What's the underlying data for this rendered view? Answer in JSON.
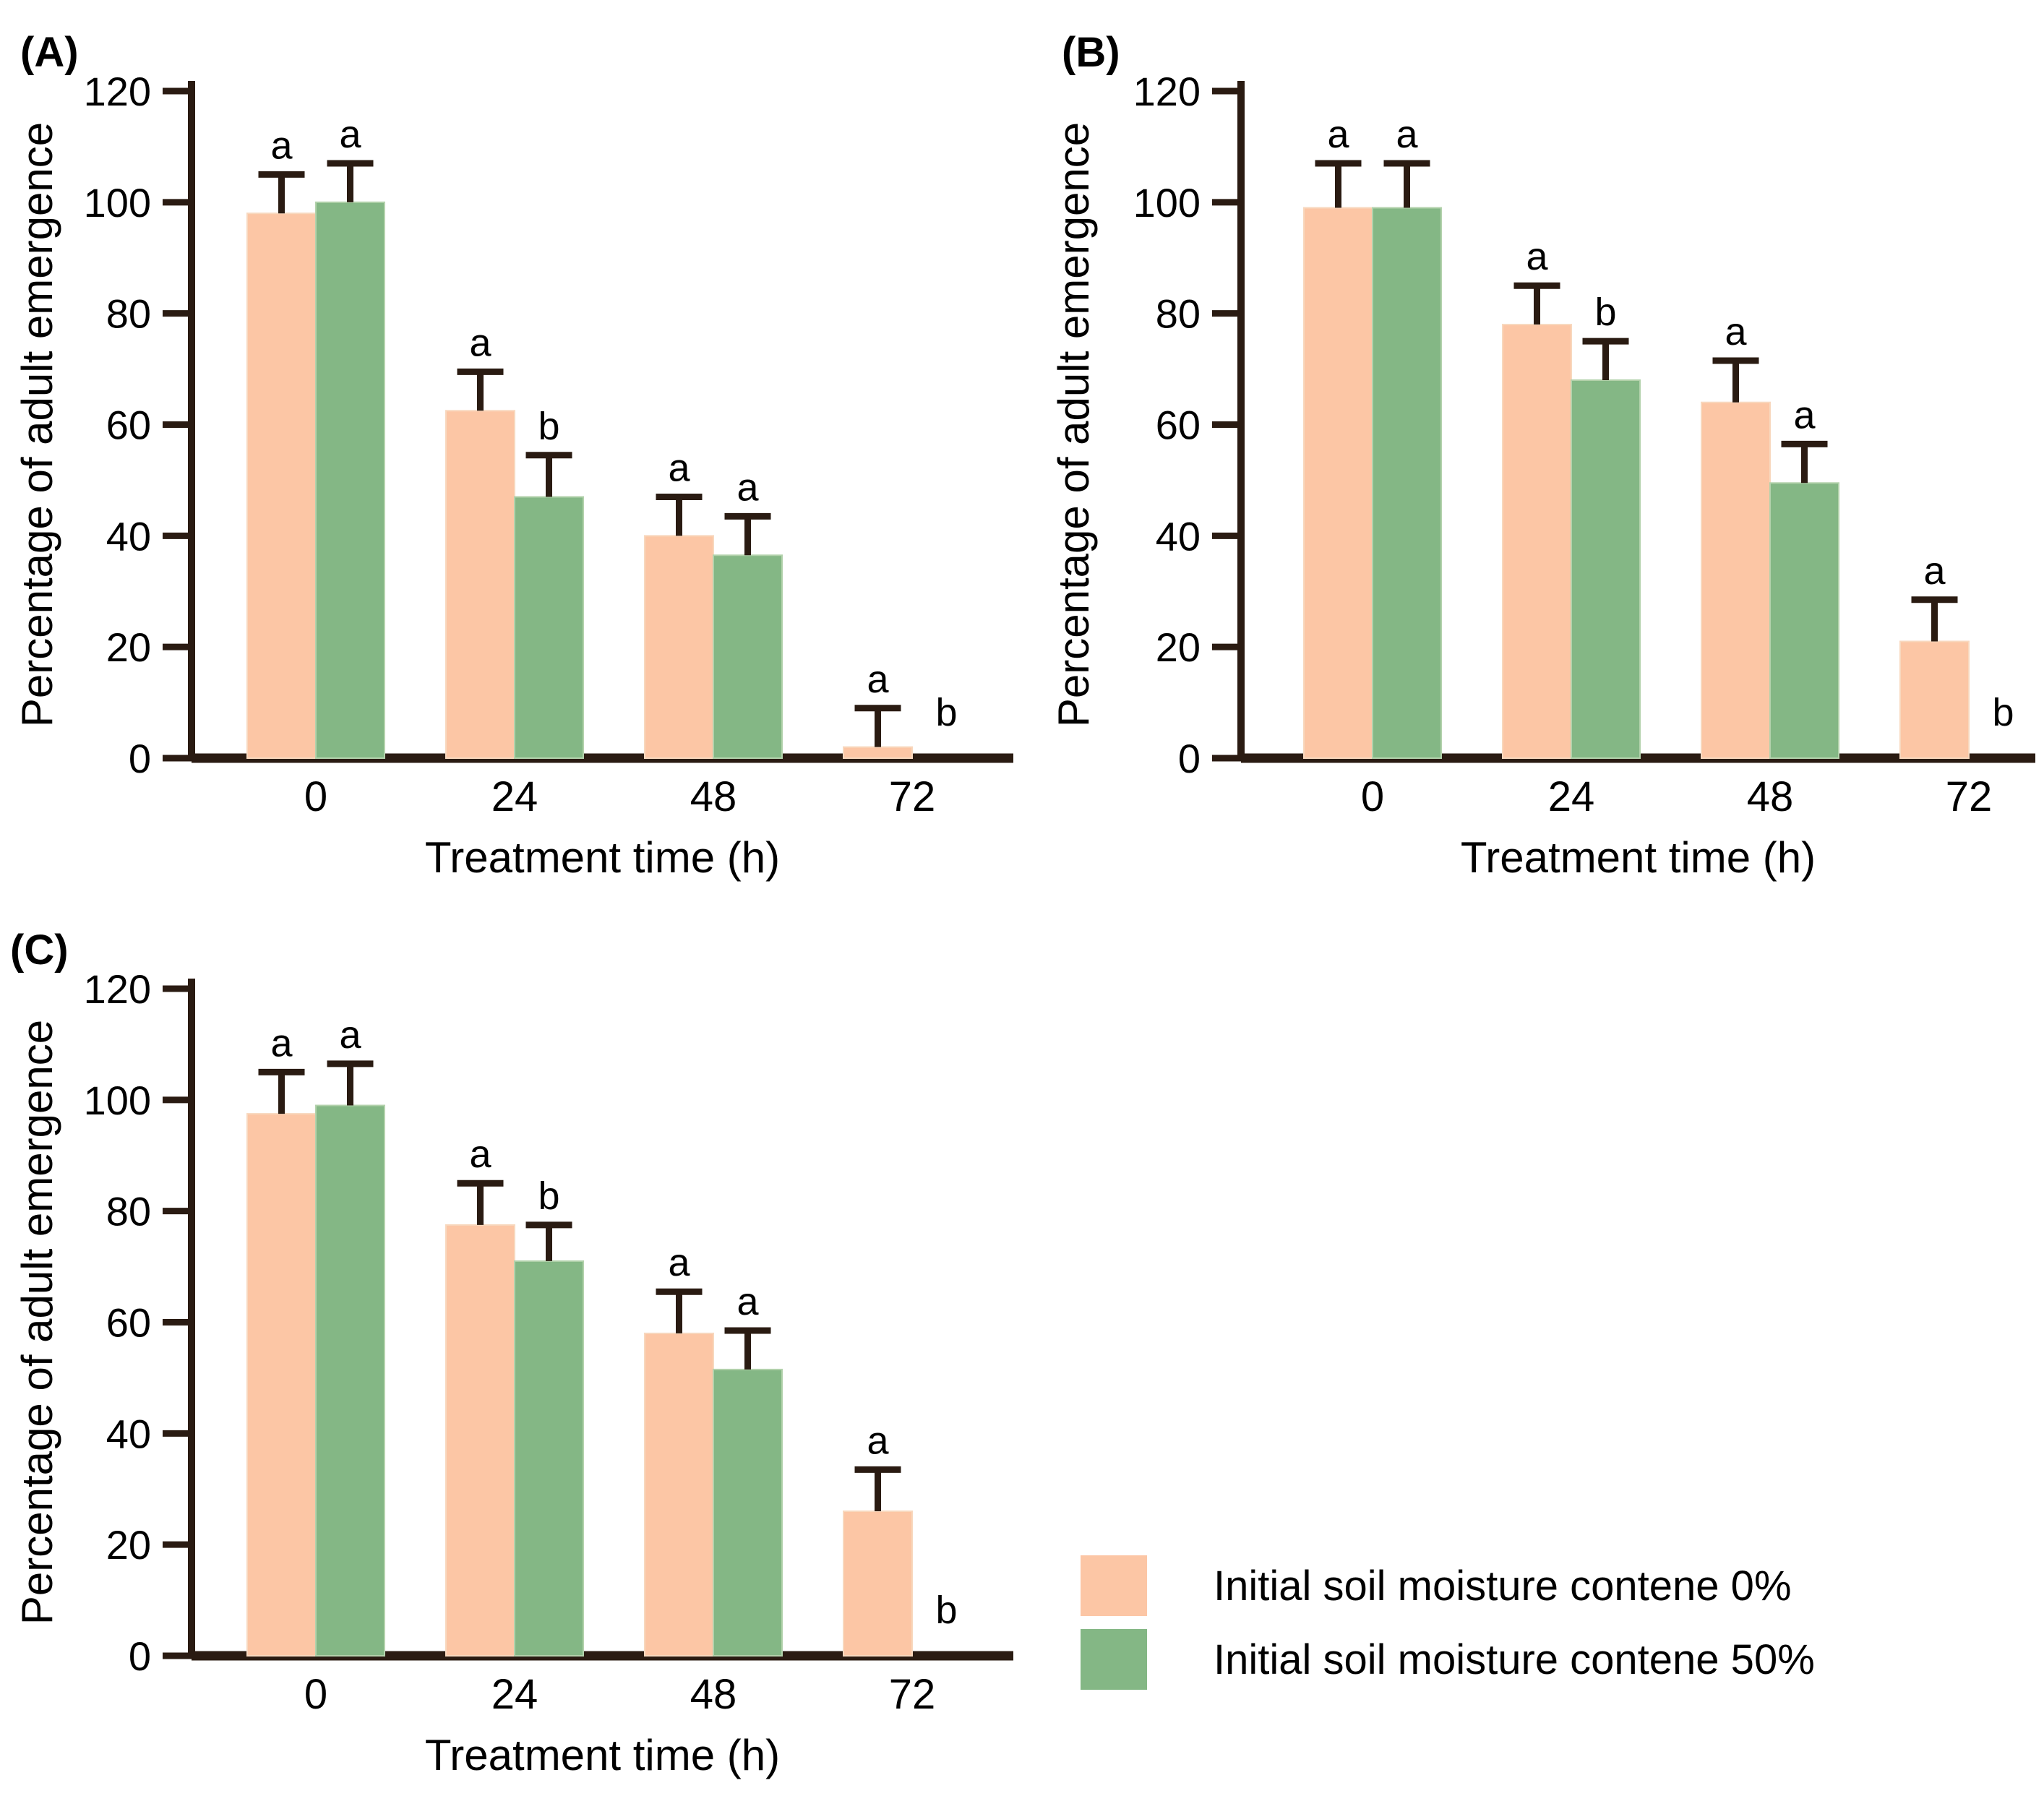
{
  "chart_data": [
    {
      "type": "bar",
      "panel_label": "(A)",
      "xlabel": "Treatment time (h)",
      "ylabel": "Percentage of adult emergence",
      "categories": [
        "0",
        "24",
        "48",
        "72"
      ],
      "ylim": [
        0,
        120
      ],
      "yticks": [
        0,
        20,
        40,
        60,
        80,
        100,
        120
      ],
      "grid": false,
      "series": [
        {
          "name": "Initial soil moisture contene 0%",
          "color": "#FCC6A5",
          "edge_color": "#F8D8BE",
          "values": [
            98,
            62.5,
            40,
            2
          ],
          "errors": [
            7,
            7,
            7,
            7
          ],
          "sig_letters": [
            "a",
            "a",
            "a",
            "a"
          ]
        },
        {
          "name": "Initial soil moisture contene 50%",
          "color": "#84B785",
          "edge_color": "#B3D2AC",
          "values": [
            100,
            47,
            36.5,
            0
          ],
          "errors": [
            7,
            7.5,
            7,
            0
          ],
          "sig_letters": [
            "a",
            "b",
            "a",
            "b"
          ]
        }
      ]
    },
    {
      "type": "bar",
      "panel_label": "(B)",
      "xlabel": "Treatment time (h)",
      "ylabel": "Percentage of adult emergence",
      "categories": [
        "0",
        "24",
        "48",
        "72"
      ],
      "ylim": [
        0,
        120
      ],
      "yticks": [
        0,
        20,
        40,
        60,
        80,
        100,
        120
      ],
      "grid": false,
      "series": [
        {
          "name": "Initial soil moisture contene 0%",
          "color": "#FCC6A5",
          "edge_color": "#F8D8BE",
          "values": [
            99,
            78,
            64,
            21
          ],
          "errors": [
            8,
            7,
            7.5,
            7.5
          ],
          "sig_letters": [
            "a",
            "a",
            "a",
            "a"
          ]
        },
        {
          "name": "Initial soil moisture contene 50%",
          "color": "#84B785",
          "edge_color": "#B3D2AC",
          "values": [
            99,
            68,
            49.5,
            0
          ],
          "errors": [
            8,
            7,
            7,
            0
          ],
          "sig_letters": [
            "a",
            "b",
            "a",
            "b"
          ]
        }
      ]
    },
    {
      "type": "bar",
      "panel_label": "(C)",
      "xlabel": "Treatment time (h)",
      "ylabel": "Percentage of adult emergence",
      "categories": [
        "0",
        "24",
        "48",
        "72"
      ],
      "ylim": [
        0,
        120
      ],
      "yticks": [
        0,
        20,
        40,
        60,
        80,
        100,
        120
      ],
      "grid": false,
      "series": [
        {
          "name": "Initial soil moisture contene 0%",
          "color": "#FCC6A5",
          "edge_color": "#F8D8BE",
          "values": [
            97.5,
            77.5,
            58,
            26
          ],
          "errors": [
            7.5,
            7.5,
            7.5,
            7.5
          ],
          "sig_letters": [
            "a",
            "a",
            "a",
            "a"
          ]
        },
        {
          "name": "Initial soil moisture contene 50%",
          "color": "#84B785",
          "edge_color": "#B3D2AC",
          "values": [
            99,
            71,
            51.5,
            0
          ],
          "errors": [
            7.5,
            6.5,
            7,
            0
          ],
          "sig_letters": [
            "a",
            "b",
            "a",
            "b"
          ]
        }
      ]
    }
  ],
  "legend": {
    "position": "bottom-right",
    "items": [
      {
        "label": "Initial soil moisture contene 0%",
        "color": "#FCC6A5"
      },
      {
        "label": "Initial soil moisture contene 50%",
        "color": "#84B785"
      }
    ]
  },
  "colors": {
    "bar_0pct": "#FCC6A5",
    "bar_50pct": "#84B785",
    "axis": "#2A1B12",
    "text": "#000000",
    "background": "#FFFFFF"
  }
}
